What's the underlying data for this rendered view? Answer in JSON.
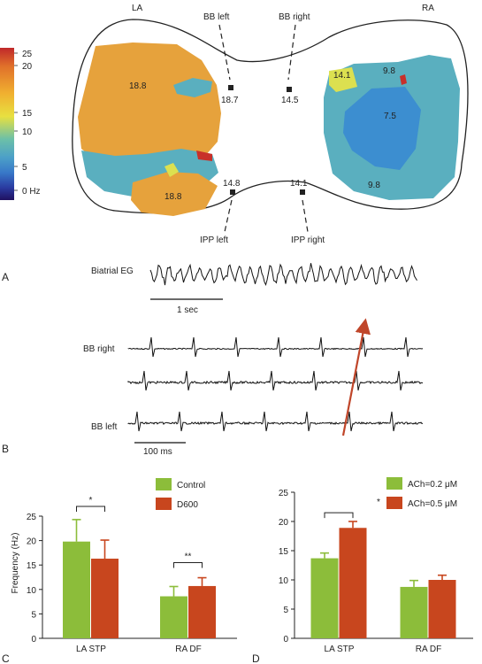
{
  "panel_letters": [
    "A",
    "B",
    "C",
    "D"
  ],
  "panel_a": {
    "colorbar": {
      "ticks": [
        "25",
        "20",
        "15",
        "10",
        "5",
        "0 Hz"
      ],
      "tick_values": [
        25,
        20,
        15,
        10,
        5,
        0
      ],
      "colors": [
        "#c0282a",
        "#e0702a",
        "#f0b030",
        "#e8e040",
        "#6cc0a8",
        "#4ca0c8",
        "#3878c8",
        "#2a3aa0",
        "#201060"
      ]
    },
    "atria": {
      "left": "LA",
      "right": "RA"
    },
    "sites": {
      "bb_left": "BB left",
      "bb_right": "BB right",
      "ipp_left": "IPP left",
      "ipp_right": "IPP right"
    },
    "frequencies": {
      "la_main": "18.8",
      "la_lower": "18.8",
      "bb_left": "18.7",
      "bb_right": "14.5",
      "ipp_left": "14.8",
      "ipp_right": "14.1",
      "ra_upper_left": "14.1",
      "ra_upper": "9.8",
      "ra_center": "7.5",
      "ra_lower": "9.8"
    },
    "region_colors": {
      "la": "#e6a23c",
      "ra": "#5aafbf",
      "ra_dark": "#3c8ed0",
      "yellow": "#dce050",
      "red": "#c8302a"
    }
  },
  "panel_b": {
    "biatrial_label": "Biatrial EG",
    "scale_1s": "1 sec",
    "trace_labels": [
      "BB right",
      "",
      "BB left"
    ],
    "scale_100ms": "100 ms",
    "arrow_color": "#c0462a"
  },
  "chart_data": [
    {
      "type": "bar",
      "panel": "C",
      "categories": [
        "LA STP",
        "RA DF"
      ],
      "series": [
        {
          "name": "Control",
          "color": "#8cbd3a",
          "values": [
            19.8,
            8.6
          ],
          "errors": [
            4.5,
            2.0
          ]
        },
        {
          "name": "D600",
          "color": "#c8461e",
          "values": [
            16.3,
            10.7
          ],
          "errors": [
            3.8,
            1.7
          ]
        }
      ],
      "ylabel": "Frequency (Hz)",
      "xlabel": "",
      "ylim": [
        0,
        25
      ],
      "yticks": [
        "0",
        "5",
        "10",
        "15",
        "20",
        "25"
      ],
      "significance": [
        "*",
        "**"
      ],
      "legend_position": "top-right",
      "grid": false
    },
    {
      "type": "bar",
      "panel": "D",
      "categories": [
        "LA STP",
        "RA DF"
      ],
      "series": [
        {
          "name": "ACh=0.2 μM",
          "color": "#8cbd3a",
          "values": [
            13.7,
            8.8
          ],
          "errors": [
            0.9,
            1.1
          ]
        },
        {
          "name": "ACh=0.5 μM",
          "color": "#c8461e",
          "values": [
            18.9,
            10.0
          ],
          "errors": [
            1.1,
            0.8
          ]
        }
      ],
      "ylabel": "",
      "xlabel": "",
      "ylim": [
        0,
        25
      ],
      "yticks": [
        "0",
        "5",
        "10",
        "15",
        "20",
        "25"
      ],
      "significance": [
        "*"
      ],
      "legend_position": "top-right",
      "grid": false
    }
  ]
}
